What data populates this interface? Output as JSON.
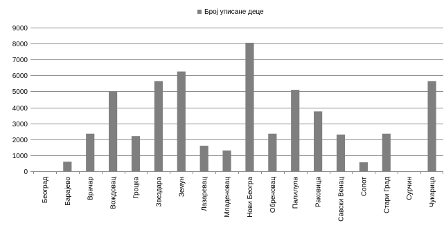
{
  "chart_data": {
    "type": "bar",
    "title": "",
    "xlabel": "",
    "ylabel": "",
    "ylim": [
      0,
      9000
    ],
    "yticks": [
      0,
      1000,
      2000,
      3000,
      4000,
      5000,
      6000,
      7000,
      8000,
      9000
    ],
    "grid": true,
    "legend_position": "top-center",
    "categories": [
      "Београд",
      "Барајево",
      "Врачар",
      "Вождовац",
      "Гроцка",
      "Звездара",
      "Земун",
      "Лазаревац",
      "Младеновац",
      "Нови Београ",
      "Обреновац",
      "Палилула",
      "Раковица",
      "Савски Венац",
      "Сопот",
      "Стари Град",
      "Сурчин",
      "Чукарица"
    ],
    "series": [
      {
        "name": "Број уписане деце",
        "color": "#7f7f7f",
        "values": [
          0,
          600,
          2350,
          5000,
          2200,
          5650,
          6250,
          1600,
          1300,
          8050,
          2350,
          5100,
          3750,
          2300,
          560,
          2350,
          0,
          5650
        ]
      }
    ]
  }
}
